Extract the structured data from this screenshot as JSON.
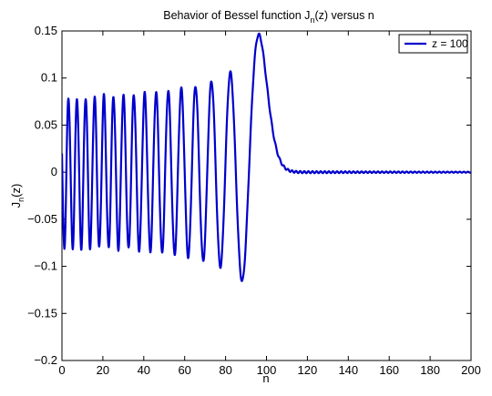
{
  "chart_data": {
    "type": "line",
    "title_parts": {
      "prefix": "Behavior of Bessel function J",
      "sub": "n",
      "suffix": "(z) versus n"
    },
    "xlabel": "n",
    "ylabel_parts": {
      "main": "J",
      "sub": "n",
      "suffix": "(z)"
    },
    "xlim": [
      0,
      200
    ],
    "ylim": [
      -0.2,
      0.15
    ],
    "xticks": [
      0,
      20,
      40,
      60,
      80,
      100,
      120,
      140,
      160,
      180,
      200
    ],
    "yticks": [
      -0.2,
      -0.15,
      -0.1,
      -0.05,
      0,
      0.05,
      0.1,
      0.15
    ],
    "ytick_labels": [
      "−0.2",
      "−0.15",
      "−0.1",
      "−0.05",
      "0",
      "0.05",
      "0.1",
      "0.15"
    ],
    "grid": false,
    "legend_position": "top-right",
    "series": [
      {
        "name": "z = 100",
        "color": "#0000cc",
        "z": 100,
        "x": [
          0,
          2,
          4,
          6,
          8,
          10,
          12,
          14,
          16,
          18,
          20,
          22,
          24,
          26,
          28,
          30,
          32,
          34,
          36,
          38,
          40,
          42,
          44,
          46,
          48,
          50,
          52,
          54,
          56,
          58,
          60,
          62,
          64,
          66,
          68,
          70,
          72,
          74,
          76,
          78,
          80,
          82,
          84,
          86,
          88,
          90,
          92,
          94,
          96,
          98,
          100,
          102,
          104,
          106,
          108,
          110,
          112,
          114,
          116,
          118,
          120,
          140,
          160,
          180,
          200
        ],
        "values": [
          0.02,
          -0.077,
          0.08,
          -0.079,
          0.08,
          -0.08,
          0.08,
          -0.08,
          0.08,
          -0.081,
          0.08,
          -0.081,
          0.081,
          -0.081,
          0.081,
          -0.082,
          0.082,
          -0.082,
          0.083,
          -0.083,
          0.083,
          -0.084,
          0.084,
          -0.085,
          0.085,
          -0.085,
          0.086,
          -0.087,
          0.087,
          -0.088,
          0.088,
          -0.089,
          0.09,
          -0.091,
          0.092,
          -0.093,
          0.094,
          -0.096,
          0.097,
          -0.098,
          0.1,
          -0.102,
          0.104,
          -0.108,
          -0.115,
          -0.09,
          0.04,
          0.12,
          0.146,
          0.115,
          0.06,
          0.025,
          0.009,
          0.003,
          0.001,
          0.0003,
          0.0001,
          0.0,
          0.0,
          0.0,
          0.0,
          0.0,
          0.0,
          0.0,
          0.0
        ]
      }
    ]
  }
}
